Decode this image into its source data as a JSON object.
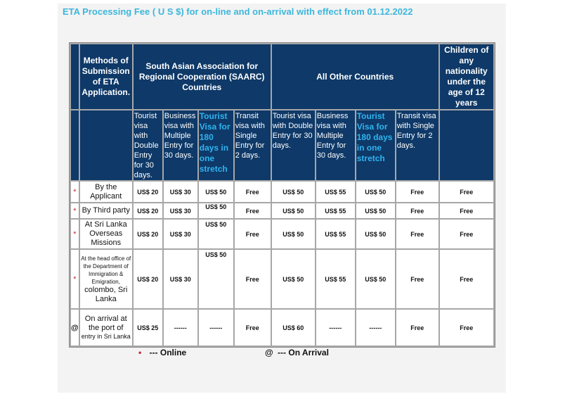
{
  "title": "ETA Processing Fee ( U S $) for on-line and on-arrival with effect from 01.12.2022",
  "header": {
    "methods": "Methods of Submission of ETA Application.",
    "saarc": "South Asian Association for Regional Cooperation (SAARC) Countries",
    "other": "All Other Countries",
    "children": "Children of any nationality under the age of 12 years"
  },
  "visa_types": {
    "saarc": [
      "Tourist visa with Double Entry for 30 days.",
      "Business visa with Multiple Entry for 30 days.",
      "Tourist Visa for 180 days in one stretch",
      "Transit visa with Single Entry for 2 days."
    ],
    "other": [
      "Tourist visa with Double Entry for 30 days.",
      "Business visa with Multiple Entry for 30 days.",
      "Tourist Visa for 180 days in one stretch",
      "Transit visa with Single Entry for 2 days."
    ]
  },
  "rows": [
    {
      "mark": "*",
      "method": "By the Applicant",
      "fees": [
        "US$ 20",
        "US$ 30",
        "US$ 50",
        "Free",
        "US$ 50",
        "US$ 55",
        "US$ 50",
        "Free",
        "Free"
      ]
    },
    {
      "mark": "*",
      "method": "By Third party",
      "fees": [
        "US$ 20",
        "US$ 30",
        "US$ 50",
        "Free",
        "US$ 50",
        "US$ 55",
        "US$ 50",
        "Free",
        "Free"
      ]
    },
    {
      "mark": "*",
      "method": "At Sri Lanka Overseas Missions",
      "fees": [
        "US$ 20",
        "US$ 30",
        "US$ 50",
        "Free",
        "US$ 50",
        "US$ 55",
        "US$ 50",
        "Free",
        "Free"
      ]
    },
    {
      "mark": "*",
      "method_small": "At the head office of the Department of Immigration & Emigration,",
      "method_big": "colombo, Sri Lanka",
      "fees": [
        "US$ 20",
        "US$ 30",
        "US$ 50",
        "Free",
        "US$ 50",
        "US$ 55",
        "US$  50",
        "Free",
        "Free"
      ]
    },
    {
      "mark": "@",
      "method_big": "On arrival at the port of",
      "method_small": "entry in Sri Lanka",
      "fees": [
        "US$ 25",
        "------",
        "------",
        "Free",
        "US$ 60",
        "------",
        "------",
        "Free",
        "Free"
      ]
    }
  ],
  "legend": {
    "online_symbol": "•",
    "online": "---  Online",
    "arrival_symbol": "@",
    "arrival": "---  On Arrival"
  }
}
